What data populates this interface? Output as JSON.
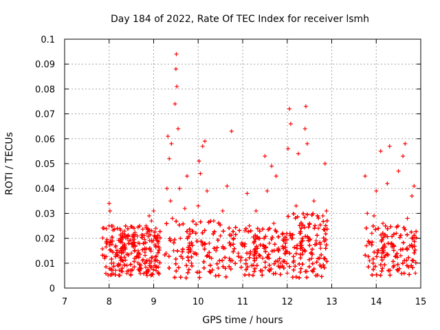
{
  "chart_data": {
    "type": "scatter",
    "title": "Day 184 of 2022, Rate Of TEC Index for receiver lsmh",
    "xlabel": "GPS time / hours",
    "ylabel": "ROTI / TECUs",
    "xlim": [
      7,
      15
    ],
    "ylim": [
      0,
      0.1
    ],
    "xticks": [
      "7",
      "8",
      "9",
      "10",
      "11",
      "12",
      "13",
      "14",
      "15"
    ],
    "yticks": [
      "0",
      "0.01",
      "0.02",
      "0.03",
      "0.04",
      "0.05",
      "0.06",
      "0.07",
      "0.08",
      "0.09",
      "0.1"
    ],
    "grid": true,
    "marker": "+",
    "color": "#ff0000",
    "series": [
      {
        "name": "ROTI",
        "points": [
          [
            7.9,
            0.012
          ],
          [
            7.95,
            0.018
          ],
          [
            8.0,
            0.025
          ],
          [
            8.0,
            0.034
          ],
          [
            8.02,
            0.031
          ],
          [
            8.05,
            0.015
          ],
          [
            8.1,
            0.01
          ],
          [
            8.15,
            0.017
          ],
          [
            8.2,
            0.013
          ],
          [
            8.25,
            0.02
          ],
          [
            8.3,
            0.011
          ],
          [
            8.35,
            0.016
          ],
          [
            8.4,
            0.009
          ],
          [
            8.45,
            0.018
          ],
          [
            8.5,
            0.014
          ],
          [
            8.55,
            0.021
          ],
          [
            8.6,
            0.012
          ],
          [
            8.65,
            0.015
          ],
          [
            8.7,
            0.008
          ],
          [
            8.75,
            0.011
          ],
          [
            8.8,
            0.016
          ],
          [
            8.85,
            0.022
          ],
          [
            8.9,
            0.029
          ],
          [
            8.95,
            0.027
          ],
          [
            9.0,
            0.031
          ],
          [
            9.05,
            0.024
          ],
          [
            9.1,
            0.018
          ],
          [
            9.28,
            0.014
          ],
          [
            9.3,
            0.04
          ],
          [
            9.32,
            0.061
          ],
          [
            9.35,
            0.052
          ],
          [
            9.38,
            0.035
          ],
          [
            9.4,
            0.058
          ],
          [
            9.42,
            0.028
          ],
          [
            9.45,
            0.015
          ],
          [
            9.48,
            0.074
          ],
          [
            9.5,
            0.088
          ],
          [
            9.51,
            0.094
          ],
          [
            9.52,
            0.081
          ],
          [
            9.55,
            0.064
          ],
          [
            9.58,
            0.04
          ],
          [
            9.6,
            0.02
          ],
          [
            9.65,
            0.012
          ],
          [
            9.7,
            0.032
          ],
          [
            9.75,
            0.045
          ],
          [
            9.8,
            0.018
          ],
          [
            9.85,
            0.01
          ],
          [
            9.9,
            0.014
          ],
          [
            9.95,
            0.022
          ],
          [
            10.0,
            0.033
          ],
          [
            10.02,
            0.051
          ],
          [
            10.05,
            0.046
          ],
          [
            10.1,
            0.057
          ],
          [
            10.15,
            0.059
          ],
          [
            10.2,
            0.039
          ],
          [
            10.25,
            0.018
          ],
          [
            10.3,
            0.012
          ],
          [
            10.35,
            0.027
          ],
          [
            10.4,
            0.015
          ],
          [
            10.45,
            0.008
          ],
          [
            10.5,
            0.021
          ],
          [
            10.55,
            0.031
          ],
          [
            10.6,
            0.016
          ],
          [
            10.65,
            0.041
          ],
          [
            10.7,
            0.012
          ],
          [
            10.75,
            0.063
          ],
          [
            10.8,
            0.02
          ],
          [
            10.9,
            0.014
          ],
          [
            10.95,
            0.011
          ],
          [
            11.0,
            0.017
          ],
          [
            11.05,
            0.023
          ],
          [
            11.1,
            0.038
          ],
          [
            11.15,
            0.025
          ],
          [
            11.2,
            0.009
          ],
          [
            11.25,
            0.013
          ],
          [
            11.3,
            0.031
          ],
          [
            11.35,
            0.02
          ],
          [
            11.4,
            0.007
          ],
          [
            11.45,
            0.012
          ],
          [
            11.5,
            0.053
          ],
          [
            11.55,
            0.039
          ],
          [
            11.6,
            0.018
          ],
          [
            11.65,
            0.049
          ],
          [
            11.7,
            0.026
          ],
          [
            11.75,
            0.045
          ],
          [
            11.8,
            0.016
          ],
          [
            11.85,
            0.01
          ],
          [
            11.9,
            0.022
          ],
          [
            11.95,
            0.014
          ],
          [
            12.0,
            0.006
          ],
          [
            12.02,
            0.056
          ],
          [
            12.05,
            0.072
          ],
          [
            12.08,
            0.066
          ],
          [
            12.1,
            0.02
          ],
          [
            12.15,
            0.011
          ],
          [
            12.2,
            0.033
          ],
          [
            12.25,
            0.054
          ],
          [
            12.3,
            0.022
          ],
          [
            12.35,
            0.015
          ],
          [
            12.4,
            0.064
          ],
          [
            12.42,
            0.073
          ],
          [
            12.45,
            0.058
          ],
          [
            12.5,
            0.026
          ],
          [
            12.55,
            0.012
          ],
          [
            12.6,
            0.035
          ],
          [
            12.65,
            0.019
          ],
          [
            12.7,
            0.024
          ],
          [
            12.75,
            0.016
          ],
          [
            12.8,
            0.029
          ],
          [
            12.85,
            0.05
          ],
          [
            12.88,
            0.031
          ],
          [
            13.75,
            0.045
          ],
          [
            13.78,
            0.017
          ],
          [
            13.8,
            0.03
          ],
          [
            13.85,
            0.011
          ],
          [
            13.9,
            0.022
          ],
          [
            13.95,
            0.029
          ],
          [
            14.0,
            0.039
          ],
          [
            14.05,
            0.015
          ],
          [
            14.1,
            0.055
          ],
          [
            14.15,
            0.026
          ],
          [
            14.2,
            0.013
          ],
          [
            14.25,
            0.042
          ],
          [
            14.3,
            0.057
          ],
          [
            14.35,
            0.018
          ],
          [
            14.4,
            0.009
          ],
          [
            14.45,
            0.022
          ],
          [
            14.5,
            0.047
          ],
          [
            14.55,
            0.013
          ],
          [
            14.6,
            0.053
          ],
          [
            14.65,
            0.058
          ],
          [
            14.7,
            0.028
          ],
          [
            14.75,
            0.017
          ],
          [
            14.8,
            0.037
          ],
          [
            14.85,
            0.041
          ],
          [
            14.88,
            0.006
          ]
        ]
      }
    ],
    "dense_clusters": [
      {
        "x_range": [
          7.85,
          9.15
        ],
        "y_range": [
          0.005,
          0.025
        ],
        "count": 520
      },
      {
        "x_range": [
          9.25,
          10.85
        ],
        "y_range": [
          0.004,
          0.027
        ],
        "count": 760
      },
      {
        "x_range": [
          10.9,
          12.0
        ],
        "y_range": [
          0.005,
          0.024
        ],
        "count": 520
      },
      {
        "x_range": [
          12.0,
          12.9
        ],
        "y_range": [
          0.004,
          0.03
        ],
        "count": 470
      },
      {
        "x_range": [
          13.75,
          14.9
        ],
        "y_range": [
          0.005,
          0.025
        ],
        "count": 520
      }
    ]
  }
}
